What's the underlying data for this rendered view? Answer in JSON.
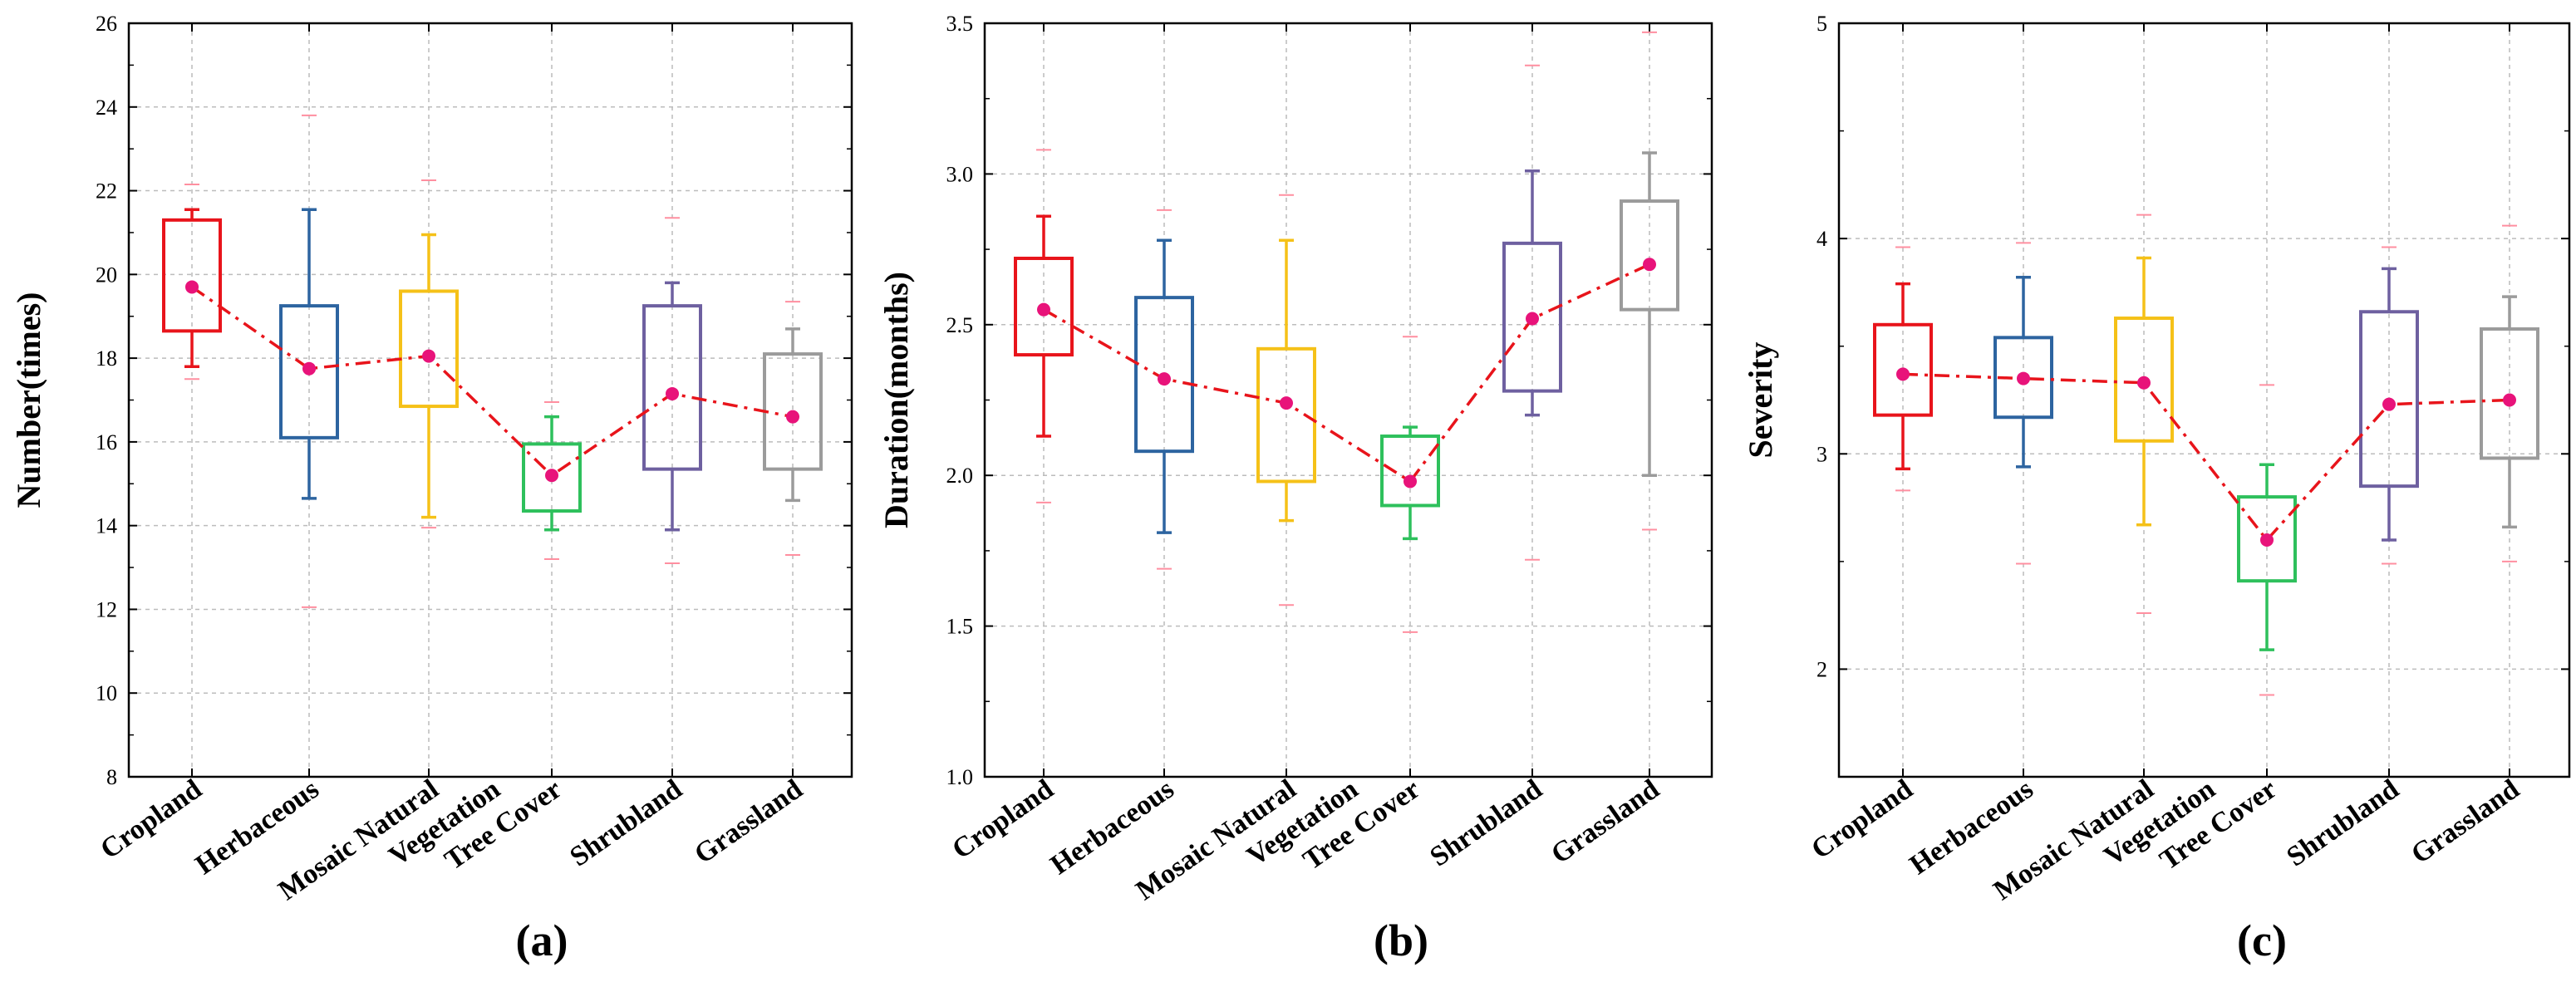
{
  "colors": {
    "Cropland": "#e8141b",
    "Herbaceous": "#2d64a0",
    "Mosaic Natural Vegetation": "#f5c118",
    "Tree Cover": "#2ec05c",
    "Shrubland": "#6e60a0",
    "Grassland": "#9b9b9b",
    "mean_line": "#e8141b",
    "mean_point": "#e8137a",
    "outlier": "#ff8fa0",
    "grid": "#bcbcbc"
  },
  "chart_data": [
    {
      "type": "box",
      "panel_label": "(a)",
      "ylabel": "Number(times)",
      "ylim": [
        8,
        26
      ],
      "yticks": [
        "8",
        "10",
        "12",
        "14",
        "16",
        "18",
        "20",
        "22",
        "24",
        "26"
      ],
      "categories": [
        "Cropland",
        "Herbaceous",
        "Mosaic Natural",
        "Vegetation",
        "Tree Cover",
        "Shrubland",
        "Grassland"
      ],
      "boxes": [
        {
          "name": "Cropland",
          "min": 17.8,
          "q1": 18.65,
          "q3": 21.3,
          "max": 21.55,
          "mean": 19.7,
          "out_low": 17.5,
          "out_high": 22.15
        },
        {
          "name": "Herbaceous",
          "min": 14.65,
          "q1": 16.1,
          "q3": 19.25,
          "max": 21.55,
          "mean": 17.75,
          "out_low": 12.05,
          "out_high": 23.8
        },
        {
          "name": "Mosaic Natural Vegetation",
          "min": 14.2,
          "q1": 16.85,
          "q3": 19.6,
          "max": 20.95,
          "mean": 18.05,
          "out_low": 13.95,
          "out_high": 22.25
        },
        {
          "name": "Tree Cover",
          "min": 13.9,
          "q1": 14.35,
          "q3": 15.95,
          "max": 16.6,
          "mean": 15.2,
          "out_low": 13.2,
          "out_high": 16.95
        },
        {
          "name": "Shrubland",
          "min": 13.9,
          "q1": 15.35,
          "q3": 19.25,
          "max": 19.8,
          "mean": 17.15,
          "out_low": 13.1,
          "out_high": 21.35
        },
        {
          "name": "Grassland",
          "min": 14.6,
          "q1": 15.35,
          "q3": 18.1,
          "max": 18.7,
          "mean": 16.6,
          "out_low": 13.3,
          "out_high": 19.35
        }
      ]
    },
    {
      "type": "box",
      "panel_label": "(b)",
      "ylabel": "Duration(months)",
      "ylim": [
        1.0,
        3.5
      ],
      "yticks": [
        "1.0",
        "1.5",
        "2.0",
        "2.5",
        "3.0",
        "3.5"
      ],
      "categories": [
        "Cropland",
        "Herbaceous",
        "Mosaic Natural",
        "Vegetation",
        "Tree Cover",
        "Shrubland",
        "Grassland"
      ],
      "boxes": [
        {
          "name": "Cropland",
          "min": 2.13,
          "q1": 2.4,
          "q3": 2.72,
          "max": 2.86,
          "mean": 2.55,
          "out_low": 1.91,
          "out_high": 3.08
        },
        {
          "name": "Herbaceous",
          "min": 1.81,
          "q1": 2.08,
          "q3": 2.59,
          "max": 2.78,
          "mean": 2.32,
          "out_low": 1.69,
          "out_high": 2.88
        },
        {
          "name": "Mosaic Natural Vegetation",
          "min": 1.85,
          "q1": 1.98,
          "q3": 2.42,
          "max": 2.78,
          "mean": 2.24,
          "out_low": 1.57,
          "out_high": 2.93
        },
        {
          "name": "Tree Cover",
          "min": 1.79,
          "q1": 1.9,
          "q3": 2.13,
          "max": 2.16,
          "mean": 1.98,
          "out_low": 1.48,
          "out_high": 2.46
        },
        {
          "name": "Shrubland",
          "min": 2.2,
          "q1": 2.28,
          "q3": 2.77,
          "max": 3.01,
          "mean": 2.52,
          "out_low": 1.72,
          "out_high": 3.36
        },
        {
          "name": "Grassland",
          "min": 2.0,
          "q1": 2.55,
          "q3": 2.91,
          "max": 3.07,
          "mean": 2.7,
          "out_low": 1.82,
          "out_high": 3.47
        }
      ]
    },
    {
      "type": "box",
      "panel_label": "(c)",
      "ylabel": "Severity",
      "ylim": [
        1.5,
        5.0
      ],
      "yticks": [
        "2",
        "3",
        "4",
        "5"
      ],
      "yticks_values": [
        2,
        3,
        4,
        5
      ],
      "categories": [
        "Cropland",
        "Herbaceous",
        "Mosaic Natural",
        "Vegetation",
        "Tree Cover",
        "Shrubland",
        "Grassland"
      ],
      "boxes": [
        {
          "name": "Cropland",
          "min": 2.93,
          "q1": 3.18,
          "q3": 3.6,
          "max": 3.79,
          "mean": 3.37,
          "out_low": 2.83,
          "out_high": 3.96
        },
        {
          "name": "Herbaceous",
          "min": 2.94,
          "q1": 3.17,
          "q3": 3.54,
          "max": 3.82,
          "mean": 3.35,
          "out_low": 2.49,
          "out_high": 3.98
        },
        {
          "name": "Mosaic Natural Vegetation",
          "min": 2.67,
          "q1": 3.06,
          "q3": 3.63,
          "max": 3.91,
          "mean": 3.33,
          "out_low": 2.26,
          "out_high": 4.11
        },
        {
          "name": "Tree Cover",
          "min": 2.09,
          "q1": 2.41,
          "q3": 2.8,
          "max": 2.95,
          "mean": 2.6,
          "out_low": 1.88,
          "out_high": 3.32
        },
        {
          "name": "Shrubland",
          "min": 2.6,
          "q1": 2.85,
          "q3": 3.66,
          "max": 3.86,
          "mean": 3.23,
          "out_low": 2.49,
          "out_high": 3.96
        },
        {
          "name": "Grassland",
          "min": 2.66,
          "q1": 2.98,
          "q3": 3.58,
          "max": 3.73,
          "mean": 3.25,
          "out_low": 2.5,
          "out_high": 4.06
        }
      ]
    }
  ]
}
